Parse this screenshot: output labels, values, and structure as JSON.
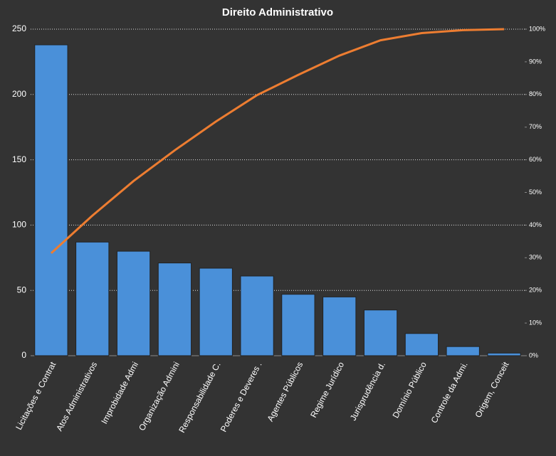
{
  "chart_data": {
    "type": "pareto",
    "title": "Direito  Administrativo",
    "categories": [
      "Licitações e Contrat",
      "Atos Administrativos",
      "Improbidade  Admi",
      "Organização Admini",
      "Responsabilidade C.",
      "Poderes e Deveres .",
      "Agentes Públicos",
      "Regime Jurídico",
      "Jurisprudência d.",
      "Domínio Público",
      "Controle da Admi.",
      "Origem, Conceit"
    ],
    "series": [
      {
        "color": "#4a90d9",
        "values": [
          238,
          87,
          80,
          71,
          67,
          61,
          47,
          45,
          35,
          17,
          7,
          2
        ]
      },
      {
        "color": "#ed7d31",
        "axis": "y2",
        "values": [
          31.4,
          42.9,
          53.5,
          62.9,
          71.7,
          79.8,
          86.0,
          91.9,
          96.6,
          98.8,
          99.7,
          100
        ]
      }
    ],
    "ylim": [
      0,
      250
    ],
    "yticks": [
      0,
      50,
      100,
      150,
      200,
      250
    ],
    "y2lim": [
      0,
      100
    ],
    "y2ticks": [
      {
        "value": 0,
        "label": "0%"
      },
      {
        "value": 10,
        "label": "10%"
      },
      {
        "value": 20,
        "label": "20%"
      },
      {
        "value": 30,
        "label": "30%"
      },
      {
        "value": 40,
        "label": "40%"
      },
      {
        "value": 50,
        "label": "50%"
      },
      {
        "value": 60,
        "label": "60%"
      },
      {
        "value": 70,
        "label": "70%"
      },
      {
        "value": 80,
        "label": "80%"
      },
      {
        "value": 90,
        "label": "90%"
      },
      {
        "value": 100,
        "label": "100%"
      }
    ],
    "grid": true
  }
}
